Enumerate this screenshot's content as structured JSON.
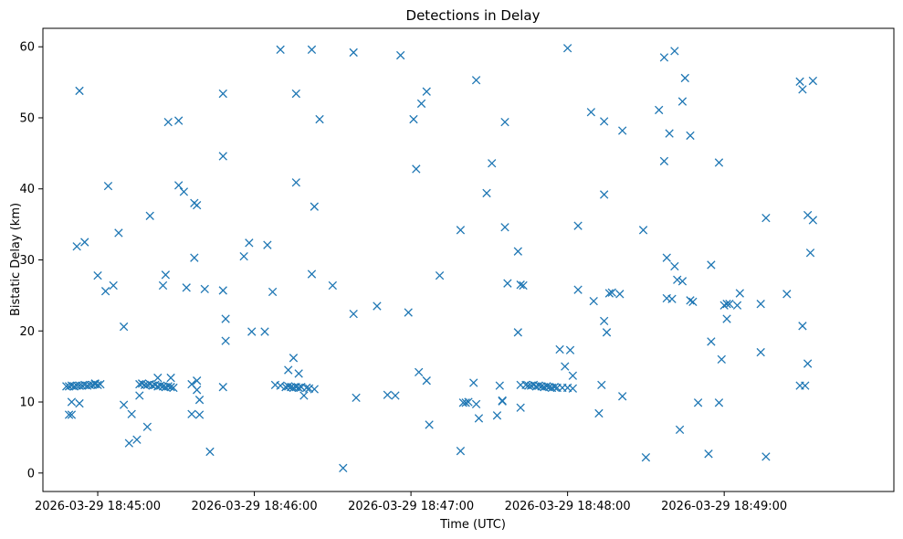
{
  "chart_data": {
    "type": "scatter",
    "title": "Detections in Delay",
    "xlabel": "Time (UTC)",
    "ylabel": "Bistatic Delay (km)",
    "marker": "x",
    "color": "#1f77b4",
    "grid": false,
    "x_ticks": [
      "2026-03-29 18:45:00",
      "2026-03-29 18:46:00",
      "2026-03-29 18:47:00",
      "2026-03-29 18:48:00",
      "2026-03-29 18:49:00"
    ],
    "x_tick_times": [
      "2026-03-29 18:45:00",
      "2026-03-29 18:46:00",
      "2026-03-29 18:47:00",
      "2026-03-29 18:48:00",
      "2026-03-29 18:49:00"
    ],
    "xlim": [
      "2026-03-29 18:44:39",
      "2026-03-29 18:50:05"
    ],
    "y_ticks": [
      0,
      10,
      20,
      30,
      40,
      50,
      60
    ],
    "ylim": [
      -2.6,
      62.6
    ],
    "points": [
      [
        "18:44:48",
        12.2
      ],
      [
        "18:44:49",
        12.2
      ],
      [
        "18:44:50",
        12.3
      ],
      [
        "18:44:51",
        12.2
      ],
      [
        "18:44:52",
        12.3
      ],
      [
        "18:44:53",
        12.3
      ],
      [
        "18:44:54",
        12.3
      ],
      [
        "18:44:55",
        12.4
      ],
      [
        "18:44:56",
        12.3
      ],
      [
        "18:44:57",
        12.4
      ],
      [
        "18:44:58",
        12.4
      ],
      [
        "18:44:59",
        12.5
      ],
      [
        "18:45:00",
        12.4
      ],
      [
        "18:45:01",
        12.5
      ],
      [
        "18:44:49",
        8.2
      ],
      [
        "18:44:50",
        8.2
      ],
      [
        "18:44:50",
        10.0
      ],
      [
        "18:44:52",
        31.9
      ],
      [
        "18:44:53",
        53.8
      ],
      [
        "18:44:53",
        9.8
      ],
      [
        "18:44:55",
        32.5
      ],
      [
        "18:44:59",
        12.6
      ],
      [
        "18:45:00",
        27.8
      ],
      [
        "18:45:03",
        25.6
      ],
      [
        "18:45:04",
        40.4
      ],
      [
        "18:45:06",
        26.4
      ],
      [
        "18:45:08",
        33.8
      ],
      [
        "18:45:10",
        9.6
      ],
      [
        "18:45:10",
        20.6
      ],
      [
        "18:45:12",
        4.2
      ],
      [
        "18:45:13",
        8.3
      ],
      [
        "18:45:15",
        4.7
      ],
      [
        "18:45:16",
        10.9
      ],
      [
        "18:45:16",
        12.5
      ],
      [
        "18:45:17",
        12.6
      ],
      [
        "18:45:18",
        12.4
      ],
      [
        "18:45:19",
        12.4
      ],
      [
        "18:45:20",
        12.5
      ],
      [
        "18:45:21",
        12.3
      ],
      [
        "18:45:22",
        12.4
      ],
      [
        "18:45:23",
        12.2
      ],
      [
        "18:45:24",
        12.3
      ],
      [
        "18:45:25",
        12.2
      ],
      [
        "18:45:26",
        12.1
      ],
      [
        "18:45:27",
        12.2
      ],
      [
        "18:45:28",
        12.1
      ],
      [
        "18:45:29",
        12.0
      ],
      [
        "18:45:19",
        6.5
      ],
      [
        "18:45:20",
        36.2
      ],
      [
        "18:45:23",
        13.4
      ],
      [
        "18:45:25",
        26.4
      ],
      [
        "18:45:26",
        27.9
      ],
      [
        "18:45:27",
        49.4
      ],
      [
        "18:45:28",
        13.4
      ],
      [
        "18:45:31",
        49.6
      ],
      [
        "18:45:31",
        40.5
      ],
      [
        "18:45:33",
        39.6
      ],
      [
        "18:45:34",
        26.1
      ],
      [
        "18:45:36",
        12.5
      ],
      [
        "18:45:36",
        8.3
      ],
      [
        "18:45:37",
        30.3
      ],
      [
        "18:45:37",
        38.0
      ],
      [
        "18:45:38",
        13.0
      ],
      [
        "18:45:38",
        37.7
      ],
      [
        "18:45:38",
        11.7
      ],
      [
        "18:45:39",
        8.2
      ],
      [
        "18:45:39",
        10.3
      ],
      [
        "18:45:41",
        25.9
      ],
      [
        "18:45:43",
        3.0
      ],
      [
        "18:45:48",
        53.4
      ],
      [
        "18:45:48",
        44.6
      ],
      [
        "18:45:48",
        25.7
      ],
      [
        "18:45:49",
        21.7
      ],
      [
        "18:45:49",
        18.6
      ],
      [
        "18:45:48",
        12.1
      ],
      [
        "18:45:56",
        30.5
      ],
      [
        "18:45:58",
        32.4
      ],
      [
        "18:45:59",
        19.9
      ],
      [
        "18:46:04",
        19.9
      ],
      [
        "18:46:05",
        32.1
      ],
      [
        "18:46:07",
        25.5
      ],
      [
        "18:46:08",
        12.4
      ],
      [
        "18:46:10",
        12.3
      ],
      [
        "18:46:12",
        12.1
      ],
      [
        "18:46:13",
        12.2
      ],
      [
        "18:46:14",
        12.1
      ],
      [
        "18:46:15",
        12.0
      ],
      [
        "18:46:16",
        12.1
      ],
      [
        "18:46:17",
        12.0
      ],
      [
        "18:46:18",
        12.1
      ],
      [
        "18:46:20",
        12.0
      ],
      [
        "18:46:21",
        11.9
      ],
      [
        "18:46:23",
        11.8
      ],
      [
        "18:46:10",
        59.6
      ],
      [
        "18:46:13",
        14.5
      ],
      [
        "18:46:15",
        16.2
      ],
      [
        "18:46:16",
        53.4
      ],
      [
        "18:46:16",
        40.9
      ],
      [
        "18:46:17",
        14.0
      ],
      [
        "18:46:19",
        10.9
      ],
      [
        "18:46:22",
        59.6
      ],
      [
        "18:46:22",
        28.0
      ],
      [
        "18:46:23",
        37.5
      ],
      [
        "18:46:25",
        49.8
      ],
      [
        "18:46:30",
        26.4
      ],
      [
        "18:46:34",
        0.7
      ],
      [
        "18:46:38",
        59.2
      ],
      [
        "18:46:38",
        22.4
      ],
      [
        "18:46:39",
        10.6
      ],
      [
        "18:46:47",
        23.5
      ],
      [
        "18:46:51",
        11.0
      ],
      [
        "18:46:54",
        10.9
      ],
      [
        "18:46:56",
        58.8
      ],
      [
        "18:46:59",
        22.6
      ],
      [
        "18:47:01",
        49.8
      ],
      [
        "18:47:02",
        42.8
      ],
      [
        "18:47:03",
        14.2
      ],
      [
        "18:47:04",
        52.0
      ],
      [
        "18:47:06",
        53.7
      ],
      [
        "18:47:06",
        13.0
      ],
      [
        "18:47:07",
        6.8
      ],
      [
        "18:47:11",
        27.8
      ],
      [
        "18:47:19",
        34.2
      ],
      [
        "18:47:19",
        3.1
      ],
      [
        "18:47:20",
        9.9
      ],
      [
        "18:47:21",
        9.9
      ],
      [
        "18:47:22",
        10.0
      ],
      [
        "18:47:24",
        12.7
      ],
      [
        "18:47:25",
        55.3
      ],
      [
        "18:47:25",
        9.7
      ],
      [
        "18:47:26",
        7.7
      ],
      [
        "18:47:29",
        39.4
      ],
      [
        "18:47:31",
        43.6
      ],
      [
        "18:47:33",
        8.1
      ],
      [
        "18:47:34",
        12.3
      ],
      [
        "18:47:35",
        10.1
      ],
      [
        "18:47:35",
        10.2
      ],
      [
        "18:47:36",
        49.4
      ],
      [
        "18:47:36",
        34.6
      ],
      [
        "18:47:37",
        26.7
      ],
      [
        "18:47:41",
        31.2
      ],
      [
        "18:47:41",
        19.8
      ],
      [
        "18:47:42",
        9.2
      ],
      [
        "18:47:42",
        26.5
      ],
      [
        "18:47:43",
        26.4
      ],
      [
        "18:47:42",
        12.4
      ],
      [
        "18:47:44",
        12.4
      ],
      [
        "18:47:45",
        12.3
      ],
      [
        "18:47:46",
        12.3
      ],
      [
        "18:47:47",
        12.4
      ],
      [
        "18:47:48",
        12.2
      ],
      [
        "18:47:49",
        12.3
      ],
      [
        "18:47:50",
        12.2
      ],
      [
        "18:47:51",
        12.1
      ],
      [
        "18:47:52",
        12.2
      ],
      [
        "18:47:53",
        12.1
      ],
      [
        "18:47:54",
        12.0
      ],
      [
        "18:47:55",
        12.1
      ],
      [
        "18:47:56",
        12.0
      ],
      [
        "18:47:58",
        12.0
      ],
      [
        "18:48:00",
        12.0
      ],
      [
        "18:48:02",
        11.9
      ],
      [
        "18:47:57",
        17.4
      ],
      [
        "18:47:59",
        15.0
      ],
      [
        "18:48:00",
        59.8
      ],
      [
        "18:48:01",
        17.3
      ],
      [
        "18:48:02",
        13.7
      ],
      [
        "18:48:04",
        25.8
      ],
      [
        "18:48:04",
        34.8
      ],
      [
        "18:48:09",
        50.8
      ],
      [
        "18:48:10",
        24.2
      ],
      [
        "18:48:12",
        8.4
      ],
      [
        "18:48:13",
        12.4
      ],
      [
        "18:48:14",
        49.5
      ],
      [
        "18:48:14",
        39.2
      ],
      [
        "18:48:14",
        21.4
      ],
      [
        "18:48:15",
        19.8
      ],
      [
        "18:48:16",
        25.3
      ],
      [
        "18:48:17",
        25.4
      ],
      [
        "18:48:20",
        25.2
      ],
      [
        "18:48:21",
        48.2
      ],
      [
        "18:48:21",
        10.8
      ],
      [
        "18:48:29",
        34.2
      ],
      [
        "18:48:30",
        2.2
      ],
      [
        "18:48:35",
        51.1
      ],
      [
        "18:48:37",
        58.5
      ],
      [
        "18:48:37",
        43.9
      ],
      [
        "18:48:38",
        24.6
      ],
      [
        "18:48:38",
        30.3
      ],
      [
        "18:48:39",
        47.8
      ],
      [
        "18:48:40",
        24.5
      ],
      [
        "18:48:41",
        59.4
      ],
      [
        "18:48:41",
        29.1
      ],
      [
        "18:48:42",
        27.2
      ],
      [
        "18:48:43",
        6.1
      ],
      [
        "18:48:44",
        52.3
      ],
      [
        "18:48:44",
        27.0
      ],
      [
        "18:48:45",
        55.6
      ],
      [
        "18:48:47",
        47.5
      ],
      [
        "18:48:47",
        24.3
      ],
      [
        "18:48:48",
        24.1
      ],
      [
        "18:48:50",
        9.9
      ],
      [
        "18:48:54",
        2.7
      ],
      [
        "18:48:55",
        29.3
      ],
      [
        "18:48:55",
        18.5
      ],
      [
        "18:48:58",
        43.7
      ],
      [
        "18:48:58",
        9.9
      ],
      [
        "18:48:59",
        16.0
      ],
      [
        "18:49:00",
        23.6
      ],
      [
        "18:49:01",
        21.7
      ],
      [
        "18:49:01",
        23.8
      ],
      [
        "18:49:02",
        23.8
      ],
      [
        "18:49:05",
        23.6
      ],
      [
        "18:49:06",
        25.3
      ],
      [
        "18:49:14",
        23.8
      ],
      [
        "18:49:14",
        17.0
      ],
      [
        "18:49:16",
        35.9
      ],
      [
        "18:49:16",
        2.3
      ],
      [
        "18:49:24",
        25.2
      ],
      [
        "18:49:29",
        12.3
      ],
      [
        "18:49:29",
        55.1
      ],
      [
        "18:49:30",
        20.7
      ],
      [
        "18:49:30",
        54.0
      ],
      [
        "18:49:31",
        12.3
      ],
      [
        "18:49:32",
        15.4
      ],
      [
        "18:49:32",
        36.3
      ],
      [
        "18:49:33",
        31.0
      ],
      [
        "18:49:34",
        35.6
      ],
      [
        "18:49:34",
        55.2
      ]
    ]
  }
}
